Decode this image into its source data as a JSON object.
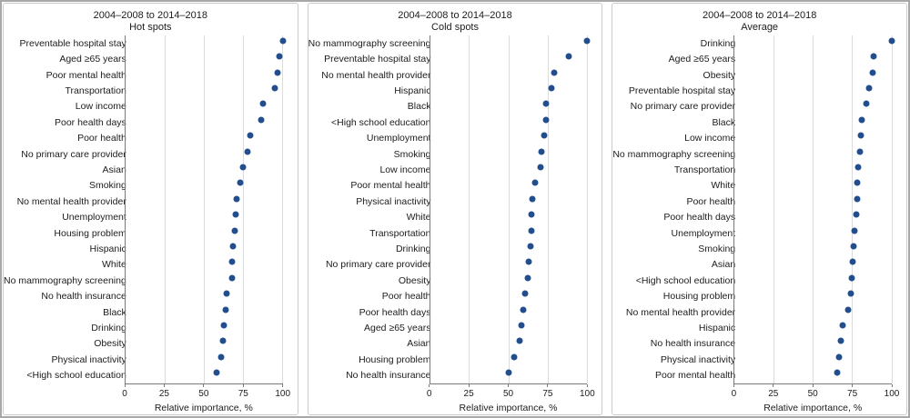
{
  "figure": {
    "dot_color": "#234e8d",
    "gridline_color": "#dcdcdc",
    "axis_color": "#7a7a7a"
  },
  "chart_data": [
    {
      "type": "scatter",
      "title": "2004–2008 to 2014–2018",
      "subtitle": "Hot spots",
      "xlabel": "Relative importance, %",
      "xlim": [
        0,
        100
      ],
      "x_ticks": [
        0,
        25,
        50,
        75,
        100
      ],
      "grid": "vertical",
      "legend": "none",
      "categories": [
        "Preventable hospital stay",
        "Aged ≥65 years",
        "Poor mental health",
        "Transportation",
        "Low income",
        "Poor health days",
        "Poor health",
        "No primary care provider",
        "Asian",
        "Smoking",
        "No mental health provider",
        "Unemployment",
        "Housing problem",
        "Hispanic",
        "White",
        "No mammography screening",
        "No health insurance",
        "Black",
        "Drinking",
        "Obesity",
        "Physical inactivity",
        "<High school education"
      ],
      "values": [
        100,
        98,
        97,
        95,
        87.5,
        86.5,
        79.5,
        77.5,
        74.5,
        73,
        70.5,
        70,
        69.5,
        68.5,
        68,
        67.5,
        64,
        63.5,
        62.5,
        62,
        61,
        58
      ]
    },
    {
      "type": "scatter",
      "title": "2004–2008 to 2014–2018",
      "subtitle": "Cold spots",
      "xlabel": "Relative importance, %",
      "xlim": [
        0,
        100
      ],
      "x_ticks": [
        0,
        25,
        50,
        75,
        100
      ],
      "grid": "vertical",
      "legend": "none",
      "categories": [
        "No mammography screening",
        "Preventable hospital stay",
        "No mental health provider",
        "Hispanic",
        "Black",
        "<High school education",
        "Unemployment",
        "Smoking",
        "Low income",
        "Poor mental health",
        "Physical inactivity",
        "White",
        "Transportation",
        "Drinking",
        "No primary care provider",
        "Obesity",
        "Poor health",
        "Poor health days",
        "Aged ≥65 years",
        "Asian",
        "Housing problem",
        "No health insurance"
      ],
      "values": [
        100,
        88,
        79,
        77.5,
        74,
        73.5,
        72.5,
        71,
        70,
        67,
        65,
        64.7,
        64.5,
        64,
        62.5,
        62,
        60.5,
        59,
        58,
        57,
        53.5,
        50
      ]
    },
    {
      "type": "scatter",
      "title": "2004–2008 to 2014–2018",
      "subtitle": "Average",
      "xlabel": "Relative importance, %",
      "xlim": [
        0,
        100
      ],
      "x_ticks": [
        0,
        25,
        50,
        75,
        100
      ],
      "grid": "vertical",
      "legend": "none",
      "categories": [
        "Drinking",
        "Aged ≥65 years",
        "Obesity",
        "Preventable hospital stay",
        "No primary care provider",
        "Black",
        "Low income",
        "No mammography screening",
        "Transportation",
        "White",
        "Poor health",
        "Poor health days",
        "Unemployment",
        "Smoking",
        "Asian",
        "<High school education",
        "Housing problem",
        "No mental health provider",
        "Hispanic",
        "No health insurance",
        "Physical inactivity",
        "Poor mental health"
      ],
      "values": [
        100,
        88.5,
        88,
        85.5,
        84,
        81,
        80.5,
        80,
        78.5,
        78.2,
        78,
        77.5,
        76.5,
        75.5,
        75,
        74.5,
        74,
        72,
        69,
        67.5,
        66.5,
        65.5
      ]
    }
  ]
}
